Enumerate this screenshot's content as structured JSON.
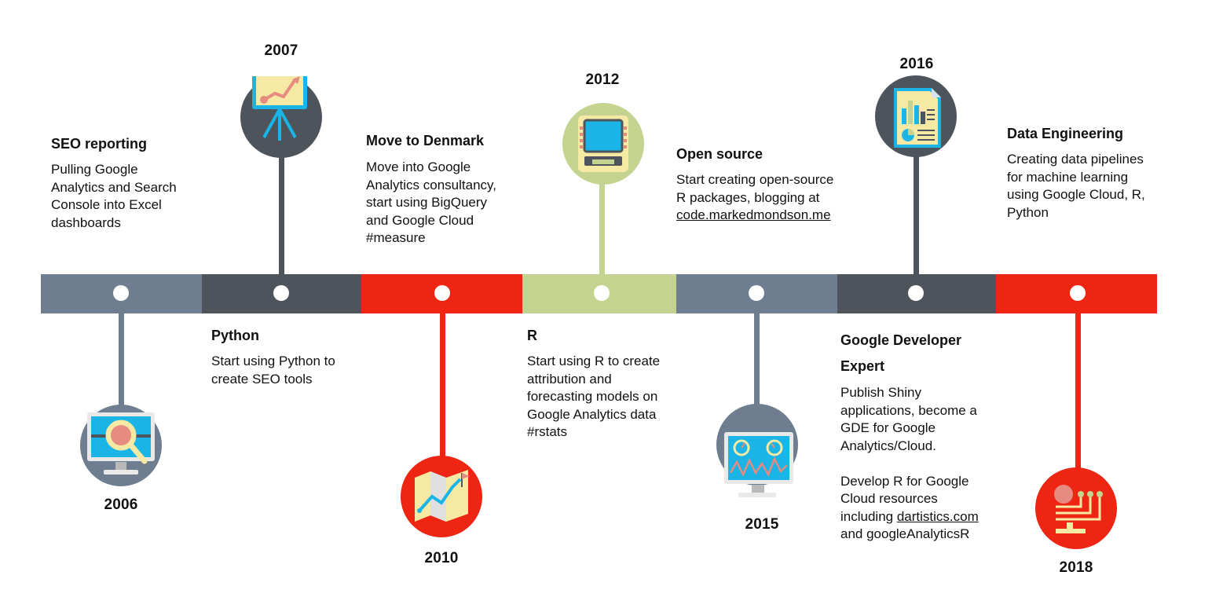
{
  "colors": {
    "slate": "#6e7d8f",
    "charcoal": "#4e545b",
    "red": "#ee2512",
    "sage": "#c4d490"
  },
  "milestones": [
    {
      "year": "2006",
      "title": "SEO reporting",
      "desc": "Pulling Google\nAnalytics and Search\nConsole into Excel\ndashboards",
      "icon": "monitor-magnifier-icon"
    },
    {
      "year": "2007",
      "title": "Python",
      "desc": "Start using Python to\ncreate SEO tools",
      "icon": "presentation-chart-icon"
    },
    {
      "year": "2010",
      "title": "Move to Denmark",
      "desc": "Move into Google\nAnalytics consultancy,\nstart using BigQuery\nand Google Cloud\n#measure",
      "icon": "map-icon"
    },
    {
      "year": "2012",
      "title": "R",
      "desc": "Start using R to create\nattribution and\nforecasting models on\nGoogle Analytics data\n#rstats",
      "icon": "atm-icon"
    },
    {
      "year": "2015",
      "title": "Open source",
      "desc_prefix": "Start creating open-source\nR packages, blogging at\n",
      "desc_link": "code.markedmondson.me",
      "icon": "dashboard-monitor-icon"
    },
    {
      "year": "2016",
      "title": "Google Developer\nExpert",
      "desc_prefix": "Publish Shiny\napplications, become a\nGDE for Google\nAnalytics/Cloud.\n\nDevelop R for Google\nCloud resources\nincluding ",
      "desc_link": "dartistics.com",
      "desc_suffix": "\nand googleAnalyticsR",
      "icon": "report-document-icon"
    },
    {
      "year": "2018",
      "title": "Data Engineering",
      "desc": "Creating data pipelines\nfor machine learning\nusing Google Cloud, R,\nPython",
      "icon": "data-pipeline-icon"
    }
  ]
}
